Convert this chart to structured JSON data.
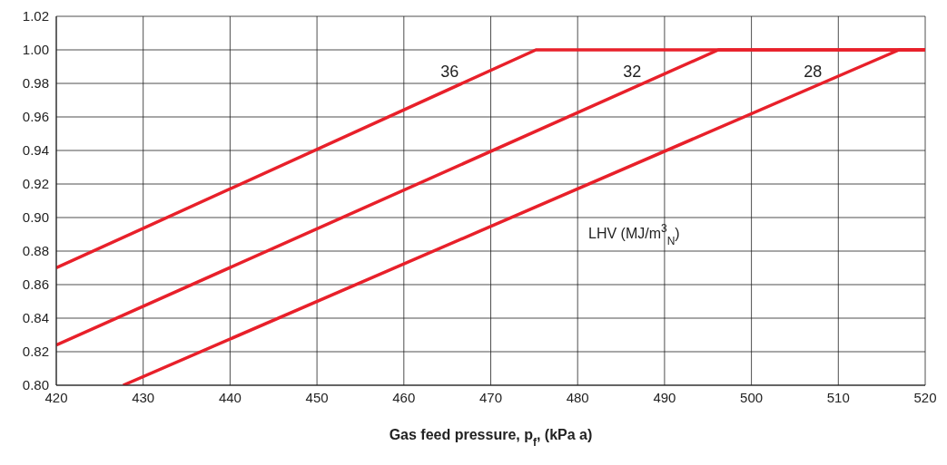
{
  "chart_data": {
    "type": "line",
    "xlabel": "Gas feed pressure, p$_{f}$, (kPa a)",
    "annotations": [
      "LHV (MJ/m$^{3}$$_{N}$)"
    ],
    "series": [
      {
        "name": "36",
        "color": "#e8202a",
        "x": [
          420,
          475.2,
          520
        ],
        "values": [
          0.87,
          1.0,
          1.0
        ]
      },
      {
        "name": "32",
        "color": "#e8202a",
        "x": [
          420,
          496.2,
          520
        ],
        "values": [
          0.824,
          1.0,
          1.0
        ]
      },
      {
        "name": "28",
        "color": "#e8202a",
        "x": [
          427.7,
          517,
          520
        ],
        "values": [
          0.8,
          1.0,
          1.0
        ]
      }
    ],
    "xlim": [
      420,
      520
    ],
    "xticks": [
      420,
      430,
      440,
      450,
      460,
      470,
      480,
      490,
      500,
      510,
      520
    ],
    "ylim": [
      0.8,
      1.02
    ],
    "yticks": [
      {
        "value": 0.8,
        "label": "0.80"
      },
      {
        "value": 0.82,
        "label": "0.82"
      },
      {
        "value": 0.84,
        "label": "0.84"
      },
      {
        "value": 0.86,
        "label": "0.86"
      },
      {
        "value": 0.88,
        "label": "0.88"
      },
      {
        "value": 0.9,
        "label": "0.90"
      },
      {
        "value": 0.92,
        "label": "0.92"
      },
      {
        "value": 0.94,
        "label": "0.94"
      },
      {
        "value": 0.96,
        "label": "0.96"
      },
      {
        "value": 0.98,
        "label": "0.98"
      },
      {
        "value": 1.0,
        "label": "1.00"
      },
      {
        "value": 1.02,
        "label": "1.02"
      }
    ],
    "grid": true,
    "legend": false,
    "marker": "none",
    "line_style": "solid"
  }
}
